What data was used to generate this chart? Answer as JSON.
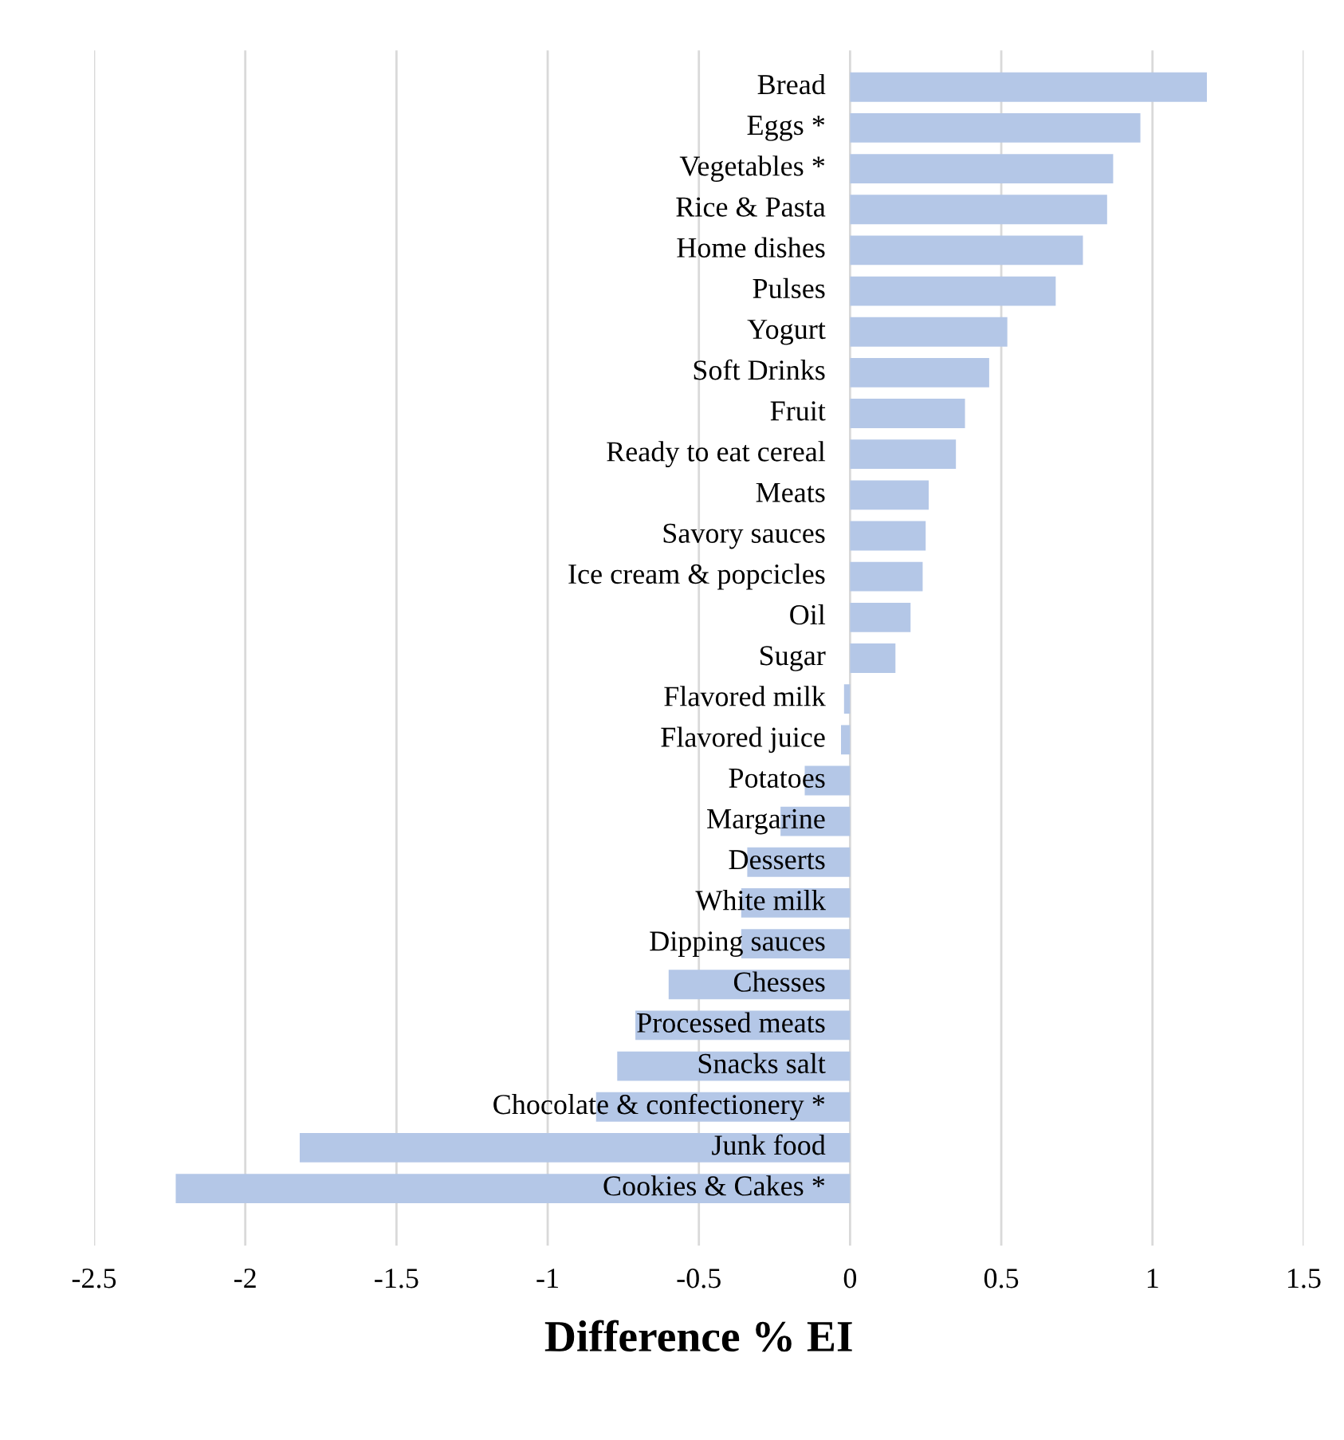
{
  "chart_data": {
    "type": "bar",
    "orientation": "horizontal",
    "xlabel": "Difference % EI",
    "categories": [
      "Bread",
      "Eggs *",
      "Vegetables *",
      "Rice & Pasta",
      "Home dishes",
      "Pulses",
      "Yogurt",
      "Soft Drinks",
      "Fruit",
      "Ready to eat cereal",
      "Meats",
      "Savory sauces",
      "Ice cream & popcicles",
      "Oil",
      "Sugar",
      "Flavored milk",
      "Flavored juice",
      "Potatoes",
      "Margarine",
      "Desserts",
      "White milk",
      "Dipping sauces",
      "Chesses",
      "Processed meats",
      "Snacks salt",
      "Chocolate & confectionery *",
      "Junk food",
      "Cookies & Cakes *"
    ],
    "values": [
      1.18,
      0.96,
      0.87,
      0.85,
      0.77,
      0.68,
      0.52,
      0.46,
      0.38,
      0.35,
      0.26,
      0.25,
      0.24,
      0.2,
      0.15,
      -0.02,
      -0.03,
      -0.15,
      -0.23,
      -0.34,
      -0.36,
      -0.36,
      -0.6,
      -0.71,
      -0.77,
      -0.84,
      -1.82,
      -2.23
    ],
    "color": "#b4c7e7",
    "xlim": [
      -2.5,
      1.5
    ],
    "xticks": [
      -2.5,
      -2,
      -1.5,
      -1,
      -0.5,
      0,
      0.5,
      1,
      1.5
    ],
    "grid": "x",
    "legend": false
  }
}
